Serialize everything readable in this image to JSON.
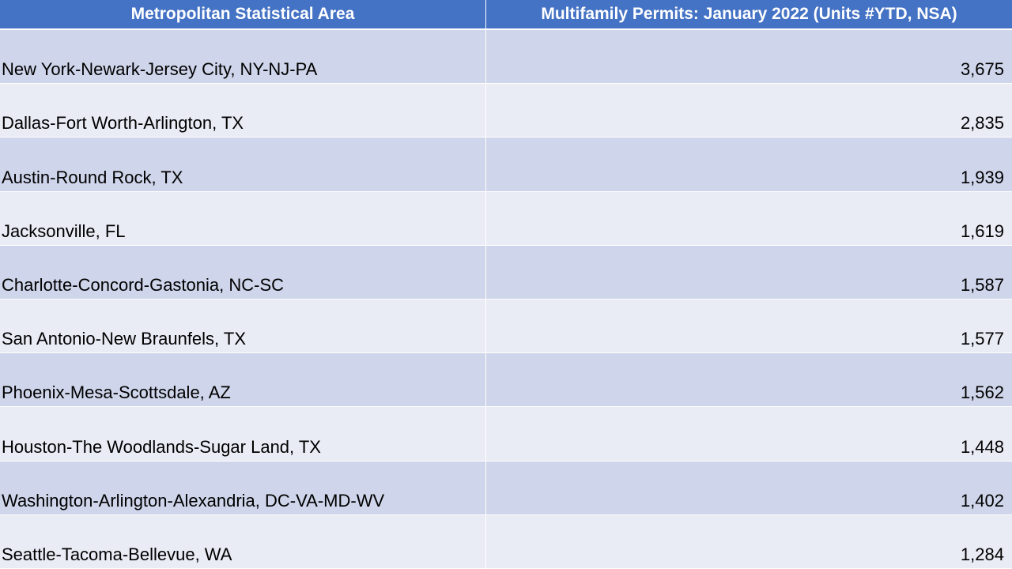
{
  "header": {
    "col1": "Metropolitan Statistical Area",
    "col2": "Multifamily Permits: January 2022 (Units #YTD, NSA)"
  },
  "colors": {
    "header_bg": "#4472c4",
    "row_odd": "#cfd5ea",
    "row_even": "#e9ebf5"
  },
  "rows": [
    {
      "area": "New York-Newark-Jersey City, NY-NJ-PA",
      "permits": "3,675"
    },
    {
      "area": "Dallas-Fort Worth-Arlington, TX",
      "permits": "2,835"
    },
    {
      "area": "Austin-Round Rock, TX",
      "permits": "1,939"
    },
    {
      "area": "Jacksonville, FL",
      "permits": "1,619"
    },
    {
      "area": "Charlotte-Concord-Gastonia, NC-SC",
      "permits": "1,587"
    },
    {
      "area": "San Antonio-New Braunfels, TX",
      "permits": "1,577"
    },
    {
      "area": "Phoenix-Mesa-Scottsdale, AZ",
      "permits": "1,562"
    },
    {
      "area": "Houston-The Woodlands-Sugar Land, TX",
      "permits": "1,448"
    },
    {
      "area": "Washington-Arlington-Alexandria, DC-VA-MD-WV",
      "permits": "1,402"
    },
    {
      "area": "Seattle-Tacoma-Bellevue, WA",
      "permits": "1,284"
    }
  ]
}
